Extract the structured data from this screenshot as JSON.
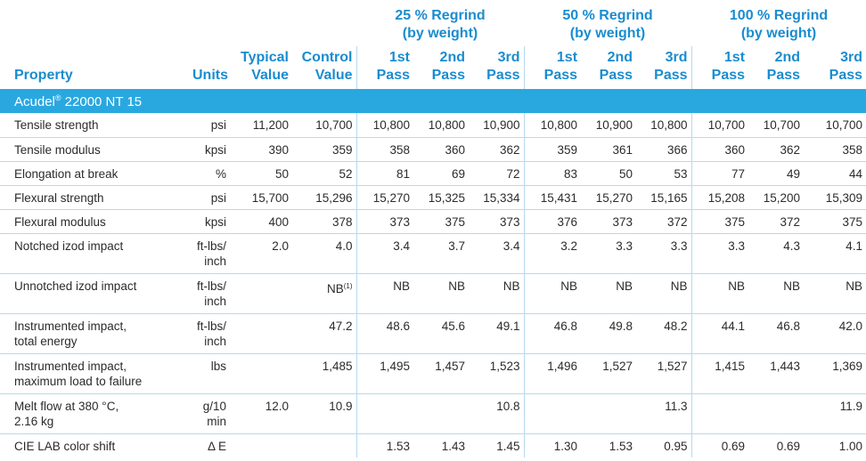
{
  "groups": [
    {
      "line1": "25 % Regrind",
      "line2": "(by weight)"
    },
    {
      "line1": "50 % Regrind",
      "line2": "(by weight)"
    },
    {
      "line1": "100 % Regrind",
      "line2": "(by weight)"
    }
  ],
  "headers": {
    "property": "Property",
    "units": "Units",
    "typical": {
      "line1": "Typical",
      "line2": "Value"
    },
    "control": {
      "line1": "Control",
      "line2": "Value"
    },
    "passes": [
      {
        "line1": "1st",
        "line2": "Pass"
      },
      {
        "line1": "2nd",
        "line2": "Pass"
      },
      {
        "line1": "3rd",
        "line2": "Pass"
      }
    ]
  },
  "section": {
    "name": "Acudel",
    "reg": "®",
    "rest": " 22000 NT 15"
  },
  "rows": [
    {
      "prop": [
        "Tensile strength"
      ],
      "units": [
        "psi"
      ],
      "values": [
        "11,200",
        "10,700",
        "10,800",
        "10,800",
        "10,900",
        "10,800",
        "10,900",
        "10,800",
        "10,700",
        "10,700",
        "10,700"
      ]
    },
    {
      "prop": [
        "Tensile modulus"
      ],
      "units": [
        "kpsi"
      ],
      "values": [
        "390",
        "359",
        "358",
        "360",
        "362",
        "359",
        "361",
        "366",
        "360",
        "362",
        "358"
      ]
    },
    {
      "prop": [
        "Elongation at break"
      ],
      "units": [
        "%"
      ],
      "values": [
        "50",
        "52",
        "81",
        "69",
        "72",
        "83",
        "50",
        "53",
        "77",
        "49",
        "44"
      ]
    },
    {
      "prop": [
        "Flexural strength"
      ],
      "units": [
        "psi"
      ],
      "values": [
        "15,700",
        "15,296",
        "15,270",
        "15,325",
        "15,334",
        "15,431",
        "15,270",
        "15,165",
        "15,208",
        "15,200",
        "15,309"
      ]
    },
    {
      "prop": [
        "Flexural modulus"
      ],
      "units": [
        "kpsi"
      ],
      "values": [
        "400",
        "378",
        "373",
        "375",
        "373",
        "376",
        "373",
        "372",
        "375",
        "372",
        "375"
      ]
    },
    {
      "prop": [
        "Notched izod impact"
      ],
      "units": [
        "ft-lbs/",
        "inch"
      ],
      "values": [
        "2.0",
        "4.0",
        "3.4",
        "3.7",
        "3.4",
        "3.2",
        "3.3",
        "3.3",
        "3.3",
        "4.3",
        "4.1"
      ]
    },
    {
      "prop": [
        "Unnotched izod impact"
      ],
      "units": [
        "ft-lbs/",
        "inch"
      ],
      "values": [
        "",
        "NB",
        "NB",
        "NB",
        "NB",
        "NB",
        "NB",
        "NB",
        "NB",
        "NB",
        "NB"
      ],
      "control_note": "(1)"
    },
    {
      "prop": [
        "Instrumented impact,",
        "total energy"
      ],
      "units": [
        "ft-lbs/",
        "inch"
      ],
      "values": [
        "",
        "47.2",
        "48.6",
        "45.6",
        "49.1",
        "46.8",
        "49.8",
        "48.2",
        "44.1",
        "46.8",
        "42.0"
      ]
    },
    {
      "prop": [
        "Instrumented impact,",
        "maximum load to failure"
      ],
      "units": [
        "lbs"
      ],
      "values": [
        "",
        "1,485",
        "1,495",
        "1,457",
        "1,523",
        "1,496",
        "1,527",
        "1,527",
        "1,415",
        "1,443",
        "1,369"
      ]
    },
    {
      "prop": [
        "Melt flow at 380 °C,",
        "2.16 kg"
      ],
      "units": [
        "g/10",
        "min"
      ],
      "values": [
        "12.0",
        "10.9",
        "",
        "",
        "10.8",
        "",
        "",
        "11.3",
        "",
        "",
        "11.9"
      ]
    },
    {
      "prop": [
        "CIE LAB color shift"
      ],
      "units": [
        "Δ E"
      ],
      "values": [
        "",
        "",
        "1.53",
        "1.43",
        "1.45",
        "1.30",
        "1.53",
        "0.95",
        "0.69",
        "0.69",
        "1.00"
      ]
    }
  ]
}
